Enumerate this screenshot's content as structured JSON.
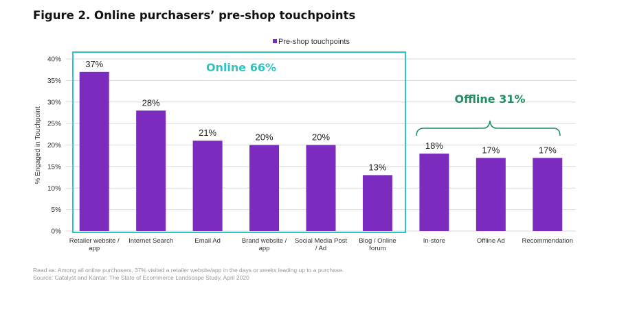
{
  "figure_title": "Figure 2. Online purchasers’ pre-shop touchpoints",
  "legend_label": "Pre-shop touchpoints",
  "groups": {
    "online": {
      "label": "Online 66%",
      "color": "#2ec4c4"
    },
    "offline": {
      "label": "Offline 31%",
      "color": "#1f8f5f"
    }
  },
  "colors": {
    "bar": "#7b2cbf",
    "grid": "#d9d9d9",
    "axis_text": "#333333"
  },
  "footnote": "Read as: Among all online purchasers, 37% visited a retailer website/app in the days or weeks leading up to a purchase.",
  "source": "Source: Catalyst and Kantar: The State of Ecommerce Landscape Study, April 2020",
  "chart_data": {
    "type": "bar",
    "categories": [
      "Retailer website / app",
      "Internet Search",
      "Email Ad",
      "Brand website / app",
      "Social Media Post / Ad",
      "Blog / Online forum",
      "In-store",
      "Offline Ad",
      "Recommendation"
    ],
    "category_lines": [
      [
        "Retailer website /",
        "app"
      ],
      [
        "Internet Search"
      ],
      [
        "Email Ad"
      ],
      [
        "Brand website /",
        "app"
      ],
      [
        "Social Media Post",
        "/ Ad"
      ],
      [
        "Blog / Online",
        "forum"
      ],
      [
        "In-store"
      ],
      [
        "Offline Ad"
      ],
      [
        "Recommendation"
      ]
    ],
    "series": [
      {
        "name": "Pre-shop touchpoints",
        "values": [
          37,
          28,
          21,
          20,
          20,
          13,
          18,
          17,
          17
        ]
      }
    ],
    "data_labels": [
      "37%",
      "28%",
      "21%",
      "20%",
      "20%",
      "13%",
      "18%",
      "17%",
      "17%"
    ],
    "y_ticks": [
      "0%",
      "5%",
      "10%",
      "15%",
      "20%",
      "25%",
      "30%",
      "35%",
      "40%"
    ],
    "ylabel": "% Engaged in Touchpoint",
    "ylim": [
      0,
      40
    ],
    "grid": true,
    "legend_position": "top"
  }
}
